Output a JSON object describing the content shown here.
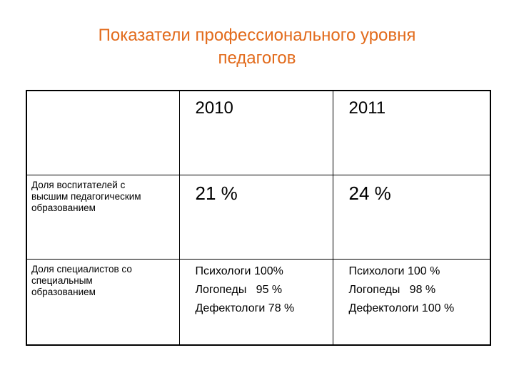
{
  "title": {
    "line1": "Показатели профессионального уровня",
    "line2": "педагогов"
  },
  "table": {
    "header": [
      "",
      "2010",
      "2011"
    ],
    "rows": [
      {
        "label_lines": [
          "Доля воспитателей с",
          "высшим педагогическим",
          "образованием"
        ],
        "values": [
          "21 %",
          "24 %"
        ]
      },
      {
        "label_lines": [
          "Доля специалистов со",
          "специальным",
          "образованием"
        ],
        "values": [
          [
            "Психологи 100%",
            "Логопеды   95 %",
            "Дефектологи 78 %"
          ],
          [
            "Психологи 100 %",
            "Логопеды   98 %",
            "Дефектологи 100 %"
          ]
        ]
      }
    ]
  },
  "colors": {
    "title": "#e26b1c",
    "text": "#000000",
    "border": "#000000",
    "background": "#ffffff"
  }
}
